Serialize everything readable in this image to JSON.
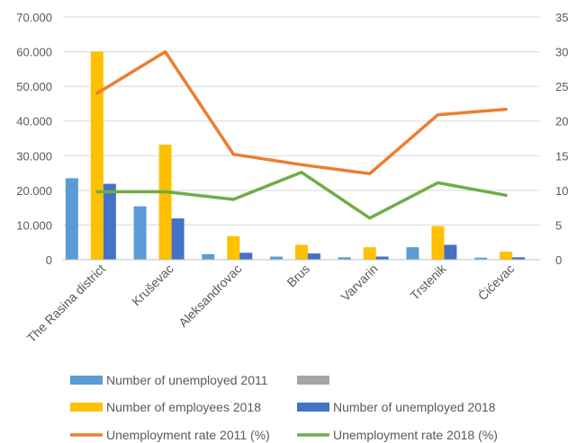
{
  "chart_data": {
    "type": "bar",
    "title": "",
    "categories": [
      "The Rasina district",
      "Kruševac",
      "Aleksandrovac",
      "Brus",
      "Varvarin",
      "Trstenik",
      "Ćićevac"
    ],
    "y_left": {
      "ylim": [
        0,
        70000
      ],
      "ticks": [
        0,
        10000,
        20000,
        30000,
        40000,
        50000,
        60000,
        70000
      ],
      "tick_labels": [
        "0",
        "10.000",
        "20.000",
        "30.000",
        "40.000",
        "50.000",
        "60.000",
        "70.000"
      ]
    },
    "y_right": {
      "ylim": [
        0,
        35
      ],
      "ticks": [
        0,
        5,
        10,
        15,
        20,
        25,
        30,
        35
      ],
      "tick_labels": [
        "0",
        "5",
        "10",
        "15",
        "20",
        "25",
        "30",
        "35"
      ]
    },
    "grid": "horizontal",
    "legend_position": "bottom",
    "series": [
      {
        "name": "Number of unemployed 2011",
        "type": "bar",
        "axis": "left",
        "color": "#5B9BD5",
        "values": [
          23500,
          15400,
          1600,
          900,
          700,
          3600,
          600
        ]
      },
      {
        "name": "",
        "type": "bar",
        "axis": "left",
        "color": "#A5A5A5",
        "values": [
          0,
          0,
          0,
          0,
          0,
          0,
          0
        ]
      },
      {
        "name": "Number of employees 2018",
        "type": "bar",
        "axis": "left",
        "color": "#FFC000",
        "values": [
          60000,
          33200,
          6800,
          4300,
          3600,
          9700,
          2300
        ]
      },
      {
        "name": "Number of unemployed 2018",
        "type": "bar",
        "axis": "left",
        "color": "#4472C4",
        "values": [
          21900,
          11900,
          2000,
          1800,
          900,
          4300,
          700
        ]
      },
      {
        "name": "Unemployment rate 2011 (%)",
        "type": "line",
        "axis": "right",
        "color": "#ED7D31",
        "values": [
          24,
          30,
          15.2,
          13.7,
          12.4,
          20.9,
          21.7
        ]
      },
      {
        "name": "Unemployment rate 2018 (%)",
        "type": "line",
        "axis": "right",
        "color": "#70AD47",
        "values": [
          9.8,
          9.8,
          8.7,
          12.6,
          6,
          11.1,
          9.3
        ]
      }
    ]
  }
}
